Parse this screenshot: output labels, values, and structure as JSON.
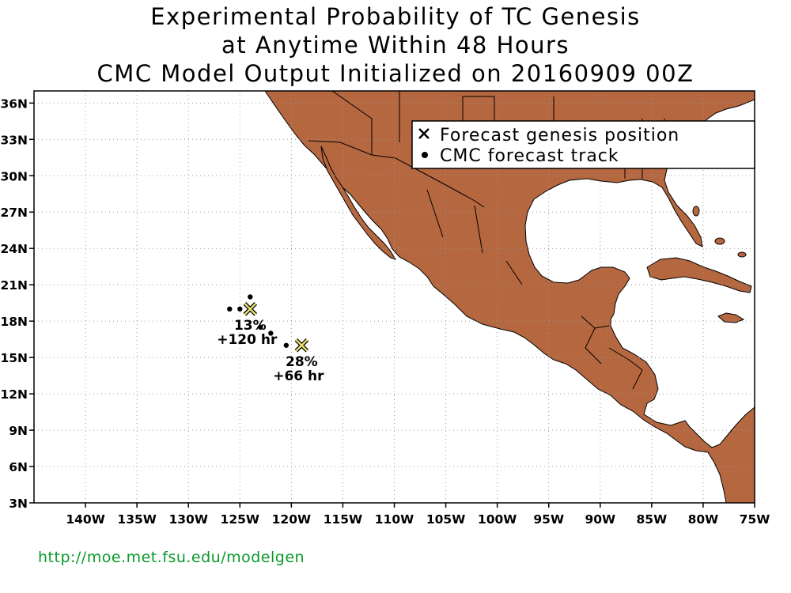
{
  "title": {
    "line1": "Experimental Probability of TC Genesis",
    "line2": "at Anytime Within 48 Hours",
    "line3": "CMC Model Output Initialized on 20160909 00Z"
  },
  "axes": {
    "lon_range": [
      -145,
      -75
    ],
    "lat_range": [
      3,
      37
    ],
    "lon_ticks": [
      {
        "value": -140,
        "label": "140W"
      },
      {
        "value": -135,
        "label": "135W"
      },
      {
        "value": -130,
        "label": "130W"
      },
      {
        "value": -125,
        "label": "125W"
      },
      {
        "value": -120,
        "label": "120W"
      },
      {
        "value": -115,
        "label": "115W"
      },
      {
        "value": -110,
        "label": "110W"
      },
      {
        "value": -105,
        "label": "105W"
      },
      {
        "value": -100,
        "label": "100W"
      },
      {
        "value": -95,
        "label": "95W"
      },
      {
        "value": -90,
        "label": "90W"
      },
      {
        "value": -85,
        "label": "85W"
      },
      {
        "value": -80,
        "label": "80W"
      },
      {
        "value": -75,
        "label": "75W"
      }
    ],
    "lat_ticks": [
      {
        "value": 3,
        "label": "3N"
      },
      {
        "value": 6,
        "label": "6N"
      },
      {
        "value": 9,
        "label": "9N"
      },
      {
        "value": 12,
        "label": "12N"
      },
      {
        "value": 15,
        "label": "15N"
      },
      {
        "value": 18,
        "label": "18N"
      },
      {
        "value": 21,
        "label": "21N"
      },
      {
        "value": 24,
        "label": "24N"
      },
      {
        "value": 27,
        "label": "27N"
      },
      {
        "value": 30,
        "label": "30N"
      },
      {
        "value": 33,
        "label": "33N"
      },
      {
        "value": 36,
        "label": "36N"
      }
    ],
    "grid": "dotted"
  },
  "legend": {
    "items": [
      {
        "symbol": "x",
        "label": "Forecast genesis position"
      },
      {
        "symbol": "dot",
        "label": "CMC forecast track"
      }
    ],
    "position": "top-right"
  },
  "genesis_points": [
    {
      "lon": -124.0,
      "lat": 19.0,
      "probability": "13%",
      "lead": "+120 hr"
    },
    {
      "lon": -119.0,
      "lat": 16.0,
      "probability": "28%",
      "lead": "+66 hr"
    }
  ],
  "track_points": [
    {
      "lon": -126.0,
      "lat": 19.0
    },
    {
      "lon": -125.0,
      "lat": 19.0
    },
    {
      "lon": -124.0,
      "lat": 20.0
    },
    {
      "lon": -123.0,
      "lat": 17.5
    },
    {
      "lon": -122.0,
      "lat": 17.0
    },
    {
      "lon": -120.5,
      "lat": 16.0
    }
  ],
  "colors": {
    "land": "#b5673f",
    "ocean": "#ffffff",
    "genesis_marker": "#e8e070",
    "grid": "#999999",
    "footer": "#0a9a2a"
  },
  "footer": {
    "url": "http://moe.met.fsu.edu/modelgen"
  }
}
